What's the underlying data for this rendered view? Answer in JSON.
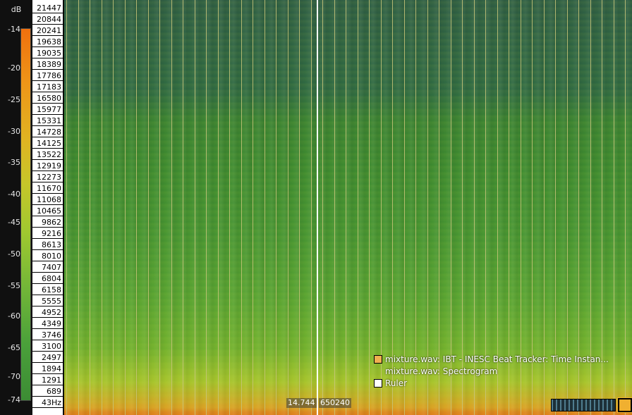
{
  "db_scale": {
    "unit": "dB",
    "labels": [
      "-14",
      "-20",
      "-25",
      "-30",
      "-35",
      "-40",
      "-45",
      "-50",
      "-55",
      "-60",
      "-65",
      "-70",
      "-74"
    ]
  },
  "frequency_scale": {
    "labels": [
      "21447",
      "20844",
      "20241",
      "19638",
      "19035",
      "18389",
      "17786",
      "17183",
      "16580",
      "15977",
      "15331",
      "14728",
      "14125",
      "13522",
      "12919",
      "12273",
      "11670",
      "11068",
      "10465",
      "9862",
      "9216",
      "8613",
      "8010",
      "7407",
      "6804",
      "6158",
      "5555",
      "4952",
      "4349",
      "3746",
      "3100",
      "2497",
      "1894",
      "1291",
      "689",
      "43Hz"
    ]
  },
  "readout": {
    "time": "14.744",
    "frame": "650240"
  },
  "legend": {
    "items": [
      {
        "label": "mixture.wav: IBT - INESC Beat Tracker: Time Instan...",
        "swatch": "#f0b050"
      },
      {
        "label": "mixture.wav: Spectrogram",
        "swatch": ""
      },
      {
        "label": "Ruler",
        "swatch": "#ffffff"
      }
    ]
  },
  "colors": {
    "playhead": "#ffffff",
    "beat_marker": "#c8c47a",
    "active_layer": "#f0b030"
  }
}
